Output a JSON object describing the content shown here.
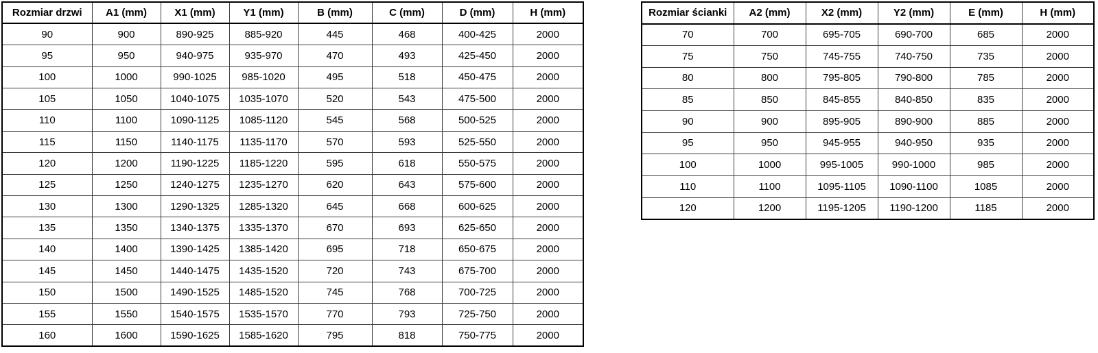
{
  "page": {
    "background_color": "#ffffff",
    "border_color": "#000000",
    "text_color": "#000000"
  },
  "door_table": {
    "title": "Rozmiar drzwi",
    "headers": [
      "Rozmiar drzwi",
      "A1 (mm)",
      "X1 (mm)",
      "Y1 (mm)",
      "B (mm)",
      "C (mm)",
      "D (mm)",
      "H (mm)"
    ],
    "rows": [
      [
        "90",
        "900",
        "890-925",
        "885-920",
        "445",
        "468",
        "400-425",
        "2000"
      ],
      [
        "95",
        "950",
        "940-975",
        "935-970",
        "470",
        "493",
        "425-450",
        "2000"
      ],
      [
        "100",
        "1000",
        "990-1025",
        "985-1020",
        "495",
        "518",
        "450-475",
        "2000"
      ],
      [
        "105",
        "1050",
        "1040-1075",
        "1035-1070",
        "520",
        "543",
        "475-500",
        "2000"
      ],
      [
        "110",
        "1100",
        "1090-1125",
        "1085-1120",
        "545",
        "568",
        "500-525",
        "2000"
      ],
      [
        "115",
        "1150",
        "1140-1175",
        "1135-1170",
        "570",
        "593",
        "525-550",
        "2000"
      ],
      [
        "120",
        "1200",
        "1190-1225",
        "1185-1220",
        "595",
        "618",
        "550-575",
        "2000"
      ],
      [
        "125",
        "1250",
        "1240-1275",
        "1235-1270",
        "620",
        "643",
        "575-600",
        "2000"
      ],
      [
        "130",
        "1300",
        "1290-1325",
        "1285-1320",
        "645",
        "668",
        "600-625",
        "2000"
      ],
      [
        "135",
        "1350",
        "1340-1375",
        "1335-1370",
        "670",
        "693",
        "625-650",
        "2000"
      ],
      [
        "140",
        "1400",
        "1390-1425",
        "1385-1420",
        "695",
        "718",
        "650-675",
        "2000"
      ],
      [
        "145",
        "1450",
        "1440-1475",
        "1435-1520",
        "720",
        "743",
        "675-700",
        "2000"
      ],
      [
        "150",
        "1500",
        "1490-1525",
        "1485-1520",
        "745",
        "768",
        "700-725",
        "2000"
      ],
      [
        "155",
        "1550",
        "1540-1575",
        "1535-1570",
        "770",
        "793",
        "725-750",
        "2000"
      ],
      [
        "160",
        "1600",
        "1590-1625",
        "1585-1620",
        "795",
        "818",
        "750-775",
        "2000"
      ]
    ]
  },
  "wall_table": {
    "title": "Rozmiar ścianki",
    "headers": [
      "Rozmiar ścianki",
      "A2 (mm)",
      "X2 (mm)",
      "Y2 (mm)",
      "E (mm)",
      "H (mm)"
    ],
    "rows": [
      [
        "70",
        "700",
        "695-705",
        "690-700",
        "685",
        "2000"
      ],
      [
        "75",
        "750",
        "745-755",
        "740-750",
        "735",
        "2000"
      ],
      [
        "80",
        "800",
        "795-805",
        "790-800",
        "785",
        "2000"
      ],
      [
        "85",
        "850",
        "845-855",
        "840-850",
        "835",
        "2000"
      ],
      [
        "90",
        "900",
        "895-905",
        "890-900",
        "885",
        "2000"
      ],
      [
        "95",
        "950",
        "945-955",
        "940-950",
        "935",
        "2000"
      ],
      [
        "100",
        "1000",
        "995-1005",
        "990-1000",
        "985",
        "2000"
      ],
      [
        "110",
        "1100",
        "1095-1105",
        "1090-1100",
        "1085",
        "2000"
      ],
      [
        "120",
        "1200",
        "1195-1205",
        "1190-1200",
        "1185",
        "2000"
      ]
    ]
  }
}
